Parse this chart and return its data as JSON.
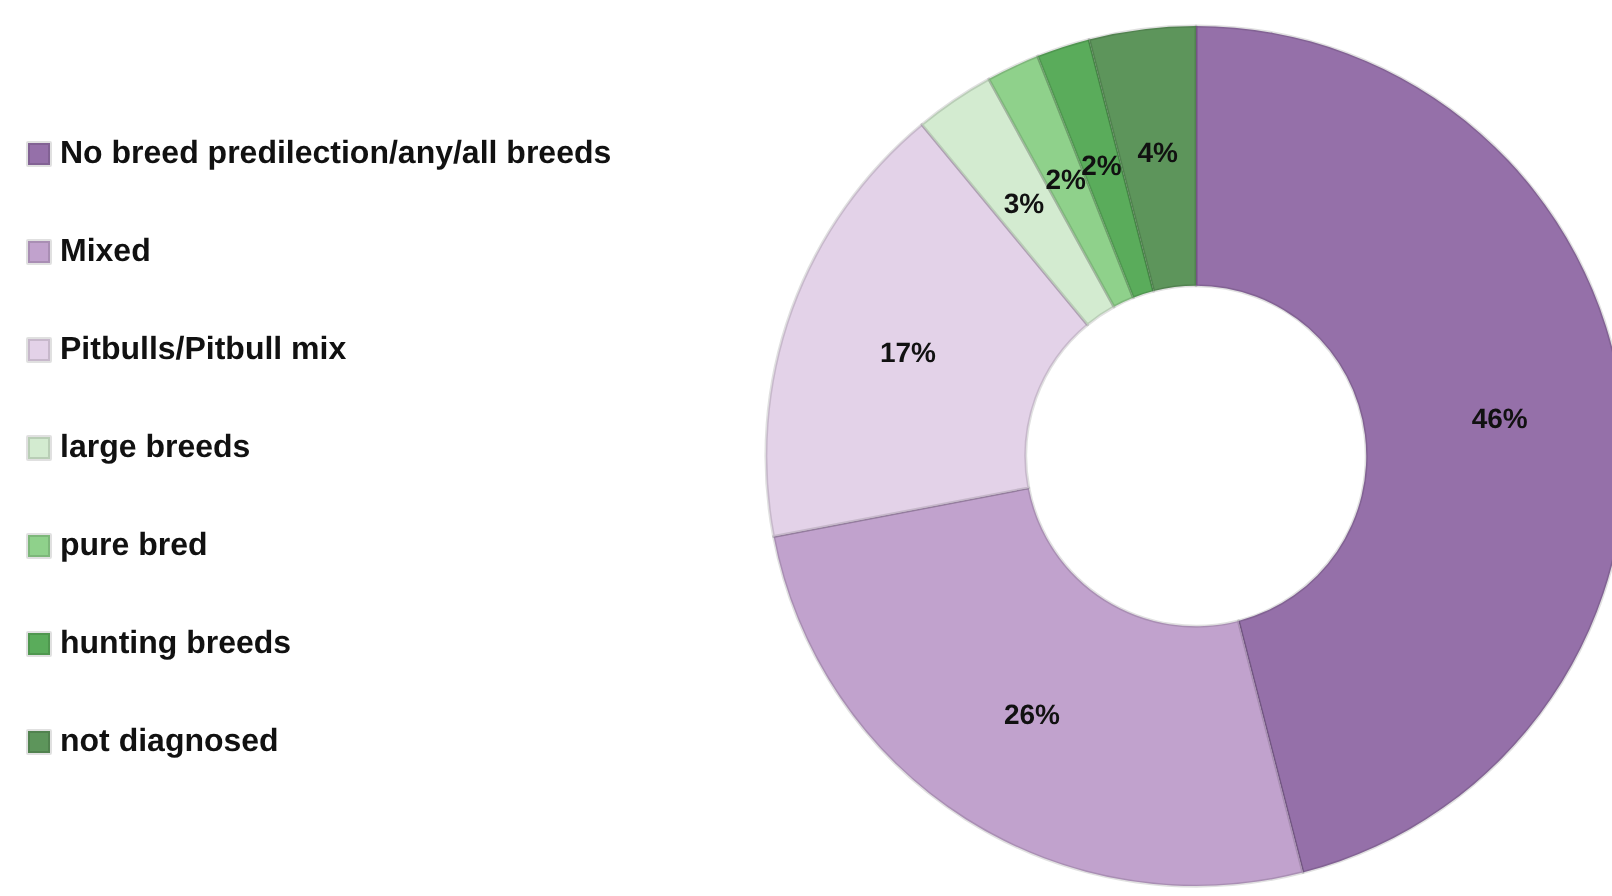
{
  "chart_data": {
    "type": "donut",
    "categories": [
      "No breed predilection/any/all breeds",
      "Mixed",
      "Pitbulls/Pitbull mix",
      "large breeds",
      "pure bred",
      "hunting breeds",
      "not diagnosed"
    ],
    "values": [
      46,
      26,
      17,
      3,
      2,
      2,
      4
    ],
    "colors": [
      "#9570a9",
      "#c1a2cd",
      "#e3d2e8",
      "#d3ebd0",
      "#8fd18b",
      "#5aac5b",
      "#5d955b"
    ],
    "value_labels": [
      "46%",
      "26%",
      "17%",
      "3%",
      "2%",
      "2%",
      "4%"
    ],
    "legend": "left"
  }
}
